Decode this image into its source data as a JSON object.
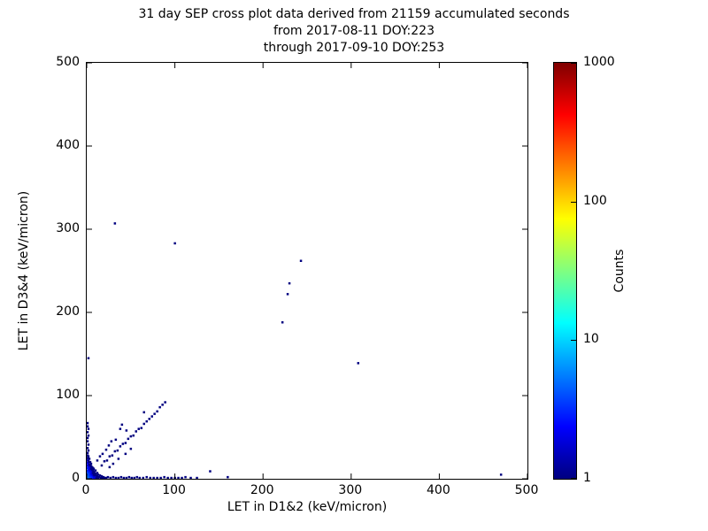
{
  "chart_data": {
    "type": "scatter",
    "title": "31 day SEP cross plot data derived from 21159 accumulated seconds",
    "subtitle1": "from 2017-08-11 DOY:223",
    "subtitle2": "through 2017-09-10 DOY:253",
    "xlabel": "LET in D1&2 (keV/micron)",
    "ylabel": "LET in D3&4 (keV/micron)",
    "xlim": [
      0,
      500
    ],
    "ylim": [
      0,
      500
    ],
    "xticks": [
      0,
      100,
      200,
      300,
      400,
      500
    ],
    "yticks": [
      0,
      100,
      200,
      300,
      400,
      500
    ],
    "grid": false,
    "marker": "square",
    "colorbar": {
      "label": "Counts",
      "scale": "log",
      "min": 1,
      "max": 1000,
      "ticks": [
        1,
        10,
        100,
        1000
      ],
      "colormap": "jet"
    },
    "points": [
      [
        1,
        1,
        8
      ],
      [
        1,
        2,
        6
      ],
      [
        1,
        4,
        5
      ],
      [
        1,
        6,
        4
      ],
      [
        1,
        8,
        4
      ],
      [
        1,
        10,
        3
      ],
      [
        1,
        13,
        3
      ],
      [
        1,
        16,
        2
      ],
      [
        1,
        19,
        2
      ],
      [
        1,
        22,
        2
      ],
      [
        1,
        25,
        1
      ],
      [
        1,
        28,
        1
      ],
      [
        2,
        1,
        6
      ],
      [
        2,
        3,
        5
      ],
      [
        2,
        5,
        4
      ],
      [
        2,
        7,
        4
      ],
      [
        2,
        9,
        3
      ],
      [
        2,
        12,
        3
      ],
      [
        2,
        15,
        2
      ],
      [
        2,
        18,
        2
      ],
      [
        2,
        21,
        1
      ],
      [
        2,
        24,
        1
      ],
      [
        2,
        27,
        1
      ],
      [
        3,
        1,
        5
      ],
      [
        3,
        3,
        4
      ],
      [
        3,
        5,
        4
      ],
      [
        3,
        8,
        3
      ],
      [
        3,
        11,
        2
      ],
      [
        3,
        14,
        2
      ],
      [
        3,
        17,
        1
      ],
      [
        3,
        20,
        1
      ],
      [
        3,
        24,
        1
      ],
      [
        4,
        2,
        4
      ],
      [
        4,
        4,
        3
      ],
      [
        4,
        7,
        3
      ],
      [
        4,
        10,
        2
      ],
      [
        4,
        13,
        2
      ],
      [
        4,
        16,
        1
      ],
      [
        4,
        20,
        1
      ],
      [
        5,
        1,
        4
      ],
      [
        5,
        3,
        3
      ],
      [
        5,
        6,
        2
      ],
      [
        5,
        9,
        2
      ],
      [
        5,
        12,
        1
      ],
      [
        5,
        15,
        1
      ],
      [
        5,
        18,
        1
      ],
      [
        6,
        2,
        3
      ],
      [
        6,
        5,
        2
      ],
      [
        6,
        8,
        2
      ],
      [
        6,
        11,
        1
      ],
      [
        6,
        14,
        1
      ],
      [
        7,
        1,
        3
      ],
      [
        7,
        4,
        2
      ],
      [
        7,
        7,
        1
      ],
      [
        7,
        10,
        1
      ],
      [
        7,
        13,
        1
      ],
      [
        8,
        2,
        2
      ],
      [
        8,
        5,
        1
      ],
      [
        8,
        9,
        1
      ],
      [
        8,
        12,
        1
      ],
      [
        9,
        1,
        2
      ],
      [
        9,
        4,
        1
      ],
      [
        9,
        7,
        1
      ],
      [
        10,
        2,
        2
      ],
      [
        10,
        6,
        1
      ],
      [
        10,
        10,
        1
      ],
      [
        11,
        1,
        1
      ],
      [
        11,
        4,
        1
      ],
      [
        12,
        3,
        1
      ],
      [
        12,
        7,
        1
      ],
      [
        13,
        1,
        1
      ],
      [
        13,
        5,
        1
      ],
      [
        14,
        2,
        1
      ],
      [
        15,
        4,
        1
      ],
      [
        16,
        1,
        1
      ],
      [
        17,
        3,
        1
      ],
      [
        18,
        1,
        1
      ],
      [
        19,
        2,
        1
      ],
      [
        20,
        1,
        1
      ],
      [
        1,
        31,
        1
      ],
      [
        2,
        34,
        1
      ],
      [
        1,
        37,
        1
      ],
      [
        2,
        41,
        1
      ],
      [
        1,
        45,
        1
      ],
      [
        1,
        49,
        1
      ],
      [
        2,
        52,
        1
      ],
      [
        1,
        56,
        1
      ],
      [
        2,
        60,
        1
      ],
      [
        1,
        63,
        1
      ],
      [
        1,
        67,
        1
      ],
      [
        2,
        145,
        1
      ],
      [
        22,
        1,
        1
      ],
      [
        24,
        2,
        1
      ],
      [
        27,
        1,
        1
      ],
      [
        30,
        2,
        1
      ],
      [
        33,
        1,
        1
      ],
      [
        36,
        1,
        1
      ],
      [
        39,
        2,
        1
      ],
      [
        42,
        1,
        1
      ],
      [
        45,
        1,
        1
      ],
      [
        48,
        2,
        1
      ],
      [
        51,
        1,
        1
      ],
      [
        54,
        1,
        1
      ],
      [
        57,
        2,
        1
      ],
      [
        60,
        1,
        1
      ],
      [
        64,
        1,
        1
      ],
      [
        68,
        2,
        1
      ],
      [
        72,
        1,
        1
      ],
      [
        76,
        1,
        1
      ],
      [
        80,
        1,
        1
      ],
      [
        84,
        1,
        1
      ],
      [
        88,
        2,
        1
      ],
      [
        92,
        1,
        1
      ],
      [
        96,
        1,
        1
      ],
      [
        100,
        1,
        1
      ],
      [
        104,
        1,
        1
      ],
      [
        108,
        1,
        1
      ],
      [
        112,
        2,
        1
      ],
      [
        118,
        1,
        1
      ],
      [
        125,
        1,
        1
      ],
      [
        160,
        2,
        1
      ],
      [
        17,
        16,
        1
      ],
      [
        20,
        21,
        1
      ],
      [
        23,
        22,
        1
      ],
      [
        26,
        27,
        1
      ],
      [
        29,
        28,
        1
      ],
      [
        32,
        33,
        1
      ],
      [
        35,
        34,
        1
      ],
      [
        38,
        39,
        1
      ],
      [
        41,
        42,
        1
      ],
      [
        44,
        43,
        1
      ],
      [
        47,
        48,
        1
      ],
      [
        50,
        51,
        1
      ],
      [
        53,
        52,
        1
      ],
      [
        56,
        57,
        1
      ],
      [
        59,
        60,
        1
      ],
      [
        62,
        61,
        1
      ],
      [
        65,
        66,
        1
      ],
      [
        68,
        69,
        1
      ],
      [
        71,
        72,
        1
      ],
      [
        74,
        75,
        1
      ],
      [
        77,
        78,
        1
      ],
      [
        80,
        81,
        1
      ],
      [
        83,
        86,
        1
      ],
      [
        86,
        89,
        1
      ],
      [
        89,
        92,
        1
      ],
      [
        12,
        22,
        1
      ],
      [
        15,
        27,
        1
      ],
      [
        18,
        30,
        1
      ],
      [
        22,
        35,
        1
      ],
      [
        25,
        40,
        1
      ],
      [
        28,
        45,
        1
      ],
      [
        33,
        47,
        1
      ],
      [
        38,
        60,
        1
      ],
      [
        40,
        65,
        1
      ],
      [
        30,
        18,
        1
      ],
      [
        36,
        24,
        1
      ],
      [
        44,
        30,
        1
      ],
      [
        50,
        36,
        1
      ],
      [
        26,
        14,
        1
      ],
      [
        45,
        58,
        1
      ],
      [
        65,
        80,
        1
      ],
      [
        32,
        307,
        1
      ],
      [
        100,
        283,
        1
      ],
      [
        230,
        235,
        1
      ],
      [
        243,
        262,
        1
      ],
      [
        228,
        222,
        1
      ],
      [
        222,
        188,
        1
      ],
      [
        308,
        139,
        1
      ],
      [
        470,
        5,
        1
      ],
      [
        140,
        9,
        1
      ]
    ]
  }
}
